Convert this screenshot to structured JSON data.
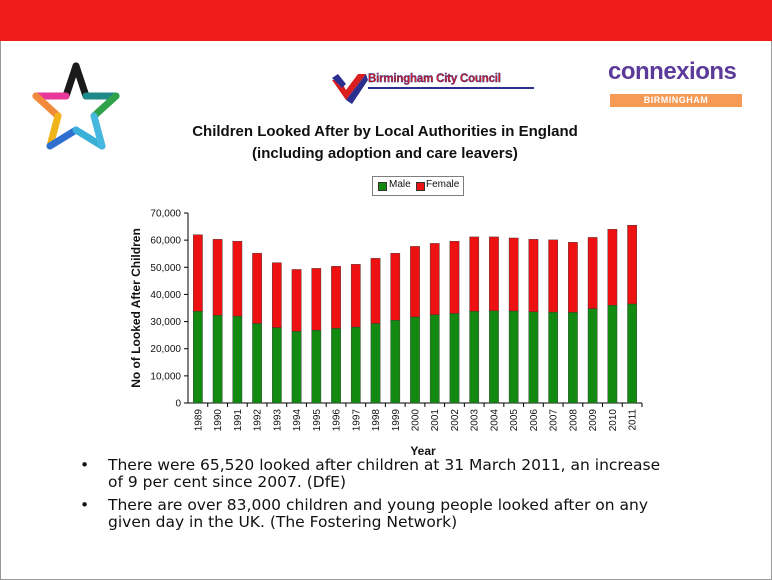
{
  "logos": {
    "council_name": "Birmingham City Council",
    "connexions_word": "connexions",
    "connexions_sub": "BIRMINGHAM"
  },
  "colors": {
    "top_band": "#ee1c1c",
    "male": "#128a12",
    "female": "#ee1111"
  },
  "icons": [
    "star-logo-icon",
    "birmingham-crest-icon"
  ],
  "chart_data": {
    "type": "bar",
    "stacked": true,
    "title": "Children Looked After by Local Authorities in England",
    "subtitle": "(including adoption and care leavers)",
    "xlabel": "Year",
    "ylabel": "No of Looked After Children",
    "ylim": [
      0,
      70000
    ],
    "yticks": [
      "0",
      "10,000",
      "20,000",
      "30,000",
      "40,000",
      "50,000",
      "60,000",
      "70,000"
    ],
    "legend_position": "top",
    "categories": [
      "1989",
      "1990",
      "1991",
      "1992",
      "1993",
      "1994",
      "1995",
      "1996",
      "1997",
      "1998",
      "1999",
      "2000",
      "2001",
      "2002",
      "2003",
      "2004",
      "2005",
      "2006",
      "2007",
      "2008",
      "2009",
      "2010",
      "2011"
    ],
    "series": [
      {
        "name": "Male",
        "values": [
          33800,
          32300,
          32000,
          29300,
          27800,
          26400,
          26800,
          27500,
          28000,
          29300,
          30500,
          31700,
          32500,
          33000,
          33800,
          34000,
          33900,
          33600,
          33500,
          33400,
          34800,
          36000,
          36500
        ]
      },
      {
        "name": "Female",
        "values": [
          28200,
          28000,
          27600,
          25900,
          23900,
          22800,
          22800,
          22900,
          23100,
          24000,
          24700,
          26000,
          26300,
          26600,
          27400,
          27200,
          26900,
          26700,
          26600,
          25800,
          26200,
          28000,
          29000
        ]
      }
    ]
  },
  "bullets": [
    {
      "line1": "There were 65,520 looked after children at 31 March 2011, an increase",
      "line2": "of 9 per cent since 2007. (DfE)"
    },
    {
      "line1": "There are over 83,000 children and young people looked after on any",
      "line2": "given day in the UK. (The Fostering Network)"
    }
  ],
  "bullet_char": "•"
}
